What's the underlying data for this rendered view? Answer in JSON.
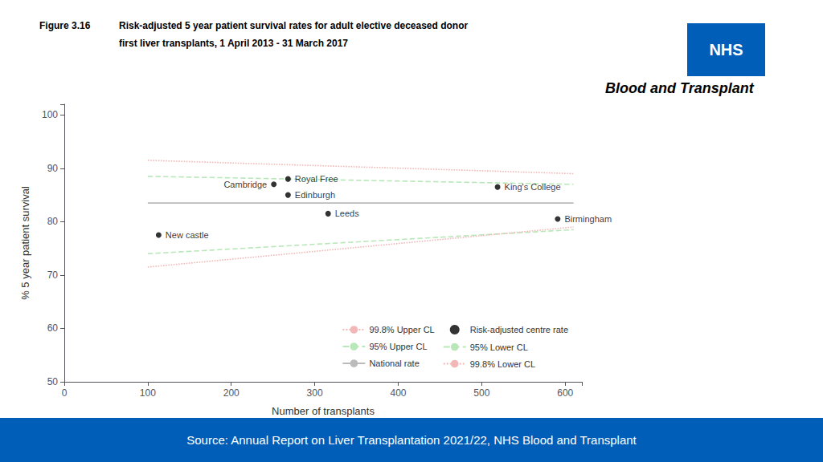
{
  "chart_data": {
    "type": "scatter",
    "figure_label": "Figure 3.16",
    "title": [
      "Risk-adjusted 5 year patient survival rates for adult elective deceased donor",
      "first liver transplants, 1 April 2013 - 31 March 2017"
    ],
    "xlabel": "Number of transplants",
    "ylabel": "% 5 year patient survival",
    "xlim": [
      0,
      620
    ],
    "ylim": [
      50,
      102
    ],
    "xticks": [
      0,
      100,
      200,
      300,
      400,
      500,
      600
    ],
    "yticks": [
      50,
      60,
      70,
      80,
      90,
      100
    ],
    "grid": false,
    "legend": "lower right",
    "series": [
      {
        "name": "99.8% Upper CL",
        "type": "line",
        "color": "#f2b8b8",
        "line_style": "dotted",
        "x": [
          100,
          610
        ],
        "values": [
          91.5,
          89.0
        ]
      },
      {
        "name": "95% Upper CL",
        "type": "line",
        "color": "#b8e8b8",
        "line_style": "dashed",
        "x": [
          100,
          610
        ],
        "values": [
          88.5,
          87.0
        ]
      },
      {
        "name": "National rate",
        "type": "line",
        "color": "#bbbbbb",
        "line_style": "solid",
        "x": [
          100,
          610
        ],
        "values": [
          83.5,
          83.5
        ]
      },
      {
        "name": "Risk-adjusted centre rate",
        "type": "scatter",
        "color": "#000000",
        "marker": "circle",
        "x": [
          113,
          251,
          268,
          268,
          316,
          519,
          591
        ],
        "values": [
          77.5,
          87.0,
          88.0,
          85.0,
          81.5,
          86.5,
          80.5
        ],
        "labels": [
          "New castle",
          "Cambridge",
          "Royal Free",
          "Edinburgh",
          "Leeds",
          "King's College",
          "Birmingham"
        ]
      },
      {
        "name": "95% Lower CL",
        "type": "line",
        "color": "#b8e8b8",
        "line_style": "dashed",
        "x": [
          100,
          610
        ],
        "values": [
          74.0,
          78.5
        ]
      },
      {
        "name": "99.8% Lower CL",
        "type": "line",
        "color": "#f2b8b8",
        "line_style": "dotted",
        "x": [
          100,
          610
        ],
        "values": [
          71.5,
          79.0
        ]
      }
    ],
    "source": {
      "text": "Source: Annual Report on Liver Transplantation 2021/22, NHS Blood and Transplant",
      "color": "#005EB8"
    },
    "logo": {
      "text": "NHS",
      "subtext": "Blood and Transplant",
      "color": "#005EB8"
    }
  }
}
